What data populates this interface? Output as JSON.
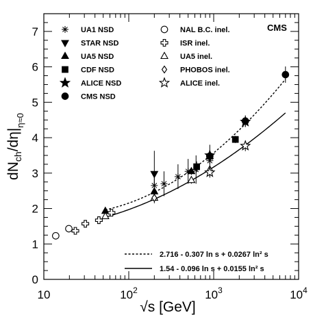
{
  "chart_data": {
    "type": "scatter",
    "badge": "CMS",
    "xlabel": "√s [GeV]",
    "ylabel": "dN_ch/dη|_η≈0",
    "xscale": "log",
    "xlim": [
      10,
      10000
    ],
    "ylim": [
      0,
      7.5
    ],
    "yticks": [
      0,
      1,
      2,
      3,
      4,
      5,
      6,
      7
    ],
    "xticks": [
      {
        "value": 10,
        "label": "10"
      },
      {
        "value": 100,
        "label": "10^2"
      },
      {
        "value": 1000,
        "label": "10^3"
      },
      {
        "value": 10000,
        "label": "10^4"
      }
    ],
    "legend_position": "top-left",
    "series": [
      {
        "name": "UA1 NSD",
        "marker": "asterisk",
        "filled": false,
        "points": [
          {
            "x": 200,
            "y": 2.65,
            "elo": 0.35,
            "ehi": 0.35
          },
          {
            "x": 260,
            "y": 2.7,
            "elo": 0.35,
            "ehi": 0.35
          },
          {
            "x": 380,
            "y": 2.9,
            "elo": 0.35,
            "ehi": 0.35
          },
          {
            "x": 500,
            "y": 3.05,
            "elo": 0.35,
            "ehi": 0.35
          },
          {
            "x": 620,
            "y": 3.1,
            "elo": 0.4,
            "ehi": 0.4
          },
          {
            "x": 900,
            "y": 3.35,
            "elo": 0.45,
            "ehi": 0.45
          }
        ]
      },
      {
        "name": "STAR NSD",
        "marker": "triangle-down",
        "filled": true,
        "points": [
          {
            "x": 200,
            "y": 2.98,
            "elo": 0.3,
            "ehi": 0.65
          }
        ]
      },
      {
        "name": "UA5 NSD",
        "marker": "triangle-up",
        "filled": true,
        "points": [
          {
            "x": 53,
            "y": 1.93,
            "elo": 0.05,
            "ehi": 0.05
          },
          {
            "x": 200,
            "y": 2.48,
            "elo": 0.1,
            "ehi": 0.1
          },
          {
            "x": 546,
            "y": 3.05,
            "elo": 0.1,
            "ehi": 0.1
          },
          {
            "x": 900,
            "y": 3.48,
            "elo": 0.1,
            "ehi": 0.1
          }
        ]
      },
      {
        "name": "CDF NSD",
        "marker": "square",
        "filled": true,
        "points": [
          {
            "x": 630,
            "y": 3.18,
            "elo": 0.15,
            "ehi": 0.15
          },
          {
            "x": 1800,
            "y": 3.95,
            "elo": 0.1,
            "ehi": 0.1
          }
        ]
      },
      {
        "name": "ALICE NSD",
        "marker": "star",
        "filled": true,
        "points": [
          {
            "x": 900,
            "y": 3.5,
            "elo": 0.15,
            "ehi": 0.15
          },
          {
            "x": 2360,
            "y": 4.45,
            "elo": 0.15,
            "ehi": 0.15
          }
        ]
      },
      {
        "name": "CMS NSD",
        "marker": "circle",
        "filled": true,
        "points": [
          {
            "x": 900,
            "y": 3.48,
            "elo": 0.13,
            "ehi": 0.13
          },
          {
            "x": 2360,
            "y": 4.47,
            "elo": 0.16,
            "ehi": 0.16
          },
          {
            "x": 7000,
            "y": 5.78,
            "elo": 0.23,
            "ehi": 0.23
          }
        ]
      },
      {
        "name": "NAL B.C. inel.",
        "marker": "circle",
        "filled": false,
        "points": [
          {
            "x": 13.8,
            "y": 1.23,
            "elo": 0,
            "ehi": 0
          },
          {
            "x": 19.7,
            "y": 1.43,
            "elo": 0,
            "ehi": 0
          }
        ]
      },
      {
        "name": "ISR inel.",
        "marker": "cross",
        "filled": false,
        "points": [
          {
            "x": 23.5,
            "y": 1.37,
            "elo": 0,
            "ehi": 0
          },
          {
            "x": 30.8,
            "y": 1.57,
            "elo": 0,
            "ehi": 0
          },
          {
            "x": 44.5,
            "y": 1.67,
            "elo": 0,
            "ehi": 0
          },
          {
            "x": 62.7,
            "y": 1.88,
            "elo": 0,
            "ehi": 0
          }
        ]
      },
      {
        "name": "UA5 inel.",
        "marker": "triangle-up",
        "filled": false,
        "points": [
          {
            "x": 53,
            "y": 1.78,
            "elo": 0.05,
            "ehi": 0.05
          },
          {
            "x": 200,
            "y": 2.3,
            "elo": 0.1,
            "ehi": 0.1
          },
          {
            "x": 546,
            "y": 2.8,
            "elo": 0.1,
            "ehi": 0.1
          },
          {
            "x": 900,
            "y": 3.1,
            "elo": 0.1,
            "ehi": 0.1
          }
        ]
      },
      {
        "name": "PHOBOS inel.",
        "marker": "diamond",
        "filled": false,
        "points": [
          {
            "x": 200,
            "y": 2.3,
            "elo": 0.15,
            "ehi": 0.15
          }
        ]
      },
      {
        "name": "ALICE inel.",
        "marker": "star",
        "filled": false,
        "points": [
          {
            "x": 900,
            "y": 3.02,
            "elo": 0.15,
            "ehi": 0.15
          },
          {
            "x": 2360,
            "y": 3.77,
            "elo": 0.15,
            "ehi": 0.15
          }
        ]
      }
    ],
    "fits": [
      {
        "label": "2.716 - 0.307 ln s + 0.0267 ln² s",
        "style": "dashed",
        "a": 2.716,
        "b": -0.307,
        "c": 0.0267,
        "xrange": [
          53,
          7000
        ]
      },
      {
        "label": "1.54 - 0.096 ln s + 0.0155 ln² s",
        "style": "solid",
        "a": 1.54,
        "b": -0.096,
        "c": 0.0155,
        "xrange": [
          53,
          7000
        ]
      }
    ]
  }
}
